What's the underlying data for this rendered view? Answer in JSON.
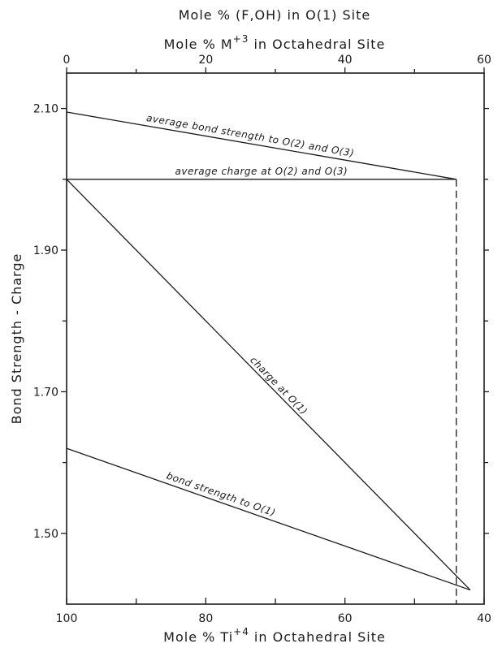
{
  "chart_data": {
    "type": "line",
    "title_lines": [
      "Mole % (F,OH) in O(1) Site"
    ],
    "top_axis": {
      "label": "Mole % M",
      "label_sup": "+3",
      "label_suffix": " in Octahedral Site",
      "range": [
        0,
        60
      ],
      "ticks": [
        0,
        20,
        40,
        60
      ]
    },
    "bottom_axis": {
      "label": "Mole % Ti",
      "label_sup": "+4",
      "label_suffix": " in Octahedral Site",
      "range": [
        100,
        40
      ],
      "ticks": [
        100,
        80,
        60,
        40
      ]
    },
    "y_axis": {
      "label": "Bond Strength - Charge",
      "range": [
        1.4,
        2.15
      ],
      "ticks": [
        2.1,
        1.9,
        1.7,
        1.5
      ],
      "tick_labels": [
        "2.10",
        "1.90",
        "1.70",
        "1.50"
      ]
    },
    "series": [
      {
        "name": "average bond strength to O(2) and O(3)",
        "x": [
          0,
          56
        ],
        "y": [
          2.095,
          2.0
        ]
      },
      {
        "name": "average charge at O(2) and O(3)",
        "x": [
          0,
          56
        ],
        "y": [
          2.0,
          2.0
        ]
      },
      {
        "name": "charge at O(1)",
        "x": [
          0,
          58
        ],
        "y": [
          2.0,
          1.42
        ]
      },
      {
        "name": "bond strength to O(1)",
        "x": [
          0,
          58
        ],
        "y": [
          1.62,
          1.42
        ]
      }
    ],
    "reference_lines": [
      {
        "type": "vertical-dashed",
        "x": 56,
        "y": [
          2.0,
          1.4
        ]
      }
    ],
    "grid": false,
    "legend": "none"
  }
}
